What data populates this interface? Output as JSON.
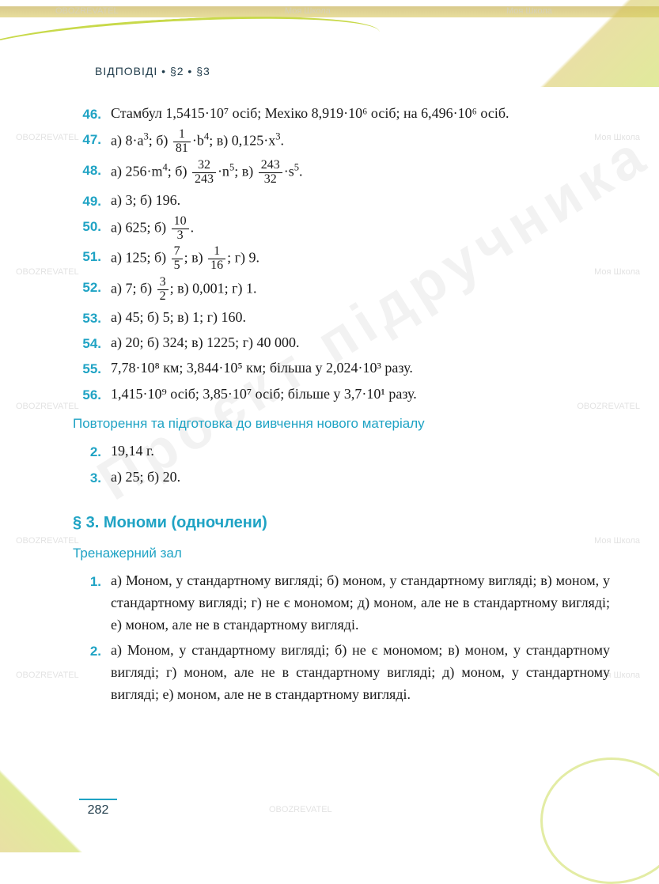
{
  "header": "ВІДПОВІДІ • §2 • §3",
  "page_number": "282",
  "watermarks": {
    "small": "OBOZREVATEL",
    "small2": "Моя Школа",
    "big": "Проєкт підручника"
  },
  "colors": {
    "accent": "#1fa3c4",
    "stripe": "#d7c65a",
    "text": "#1a1a1a",
    "header_text": "#1f3b4a"
  },
  "styles": {
    "body_fontsize": 18,
    "num_fontsize": 17,
    "section_fontsize": 20,
    "subtitle_fontsize": 17,
    "font_body": "Georgia",
    "font_headings": "Arial"
  },
  "items": [
    {
      "n": "46.",
      "t": "Стамбул 1,5415·10⁷ осіб; Мехіко 8,919·10⁶ осіб; на 6,496·10⁶ осіб."
    },
    {
      "n": "47.",
      "parts": [
        {
          "pre": "а) 8·a",
          "sup": "3",
          "post": "; б) "
        },
        {
          "frac": {
            "n": "1",
            "d": "81"
          },
          "post": "·b"
        },
        {
          "sup": "4",
          "post": "; в) 0,125·x"
        },
        {
          "sup": "3",
          "post": "."
        }
      ]
    },
    {
      "n": "48.",
      "parts": [
        {
          "pre": "а) 256·m",
          "sup": "4",
          "post": "; б) "
        },
        {
          "frac": {
            "n": "32",
            "d": "243"
          },
          "post": "·n"
        },
        {
          "sup": "5",
          "post": "; в) "
        },
        {
          "frac": {
            "n": "243",
            "d": "32"
          },
          "post": "·s"
        },
        {
          "sup": "5",
          "post": "."
        }
      ]
    },
    {
      "n": "49.",
      "t": "а) 3; б) 196."
    },
    {
      "n": "50.",
      "parts": [
        {
          "pre": "а) 625; б) "
        },
        {
          "frac": {
            "n": "10",
            "d": "3"
          },
          "post": "."
        }
      ]
    },
    {
      "n": "51.",
      "parts": [
        {
          "pre": "а) 125; б) "
        },
        {
          "frac": {
            "n": "7",
            "d": "5"
          },
          "post": "; в) "
        },
        {
          "frac": {
            "n": "1",
            "d": "16"
          },
          "post": "; г) 9."
        }
      ]
    },
    {
      "n": "52.",
      "parts": [
        {
          "pre": "а) 7; б) "
        },
        {
          "frac": {
            "n": "3",
            "d": "2"
          },
          "post": "; в) 0,001; г) 1."
        }
      ]
    },
    {
      "n": "53.",
      "t": "а) 45; б) 5; в) 1; г) 160."
    },
    {
      "n": "54.",
      "t": "а) 20; б) 324; в) 1225; г) 40 000."
    },
    {
      "n": "55.",
      "t": "7,78·10⁸ км; 3,844·10⁵ км; більша у 2,024·10³ разу."
    },
    {
      "n": "56.",
      "t": "1,415·10⁹ осіб; 3,85·10⁷ осіб; більше у 3,7·10¹ разу."
    }
  ],
  "review_title": "Повторення та підготовка до вивчення нового матеріалу",
  "review_items": [
    {
      "n": "2.",
      "t": "19,14 г."
    },
    {
      "n": "3.",
      "t": "а) 25; б) 20."
    }
  ],
  "section3_title": "§ 3. Мономи (одночлени)",
  "trainer_title": "Тренажерний зал",
  "trainer_items": [
    {
      "n": "1.",
      "t": "а) Моном, у стандартному вигляді; б) моном, у стандартному вигляді; в) моном, у стандартному вигляді; г) не є мономом; д) моном, але не в стандартному вигляді; е) моном, але не в стандартному вигляді."
    },
    {
      "n": "2.",
      "t": "а) Моном, у стандартному вигляді; б) не є мономом; в) моном, у стандартному вигляді; г) моном, але не в стандартному вигляді; д) моном, у стандартному вигляді; е) моном, але не в стандартному вигляді."
    }
  ]
}
